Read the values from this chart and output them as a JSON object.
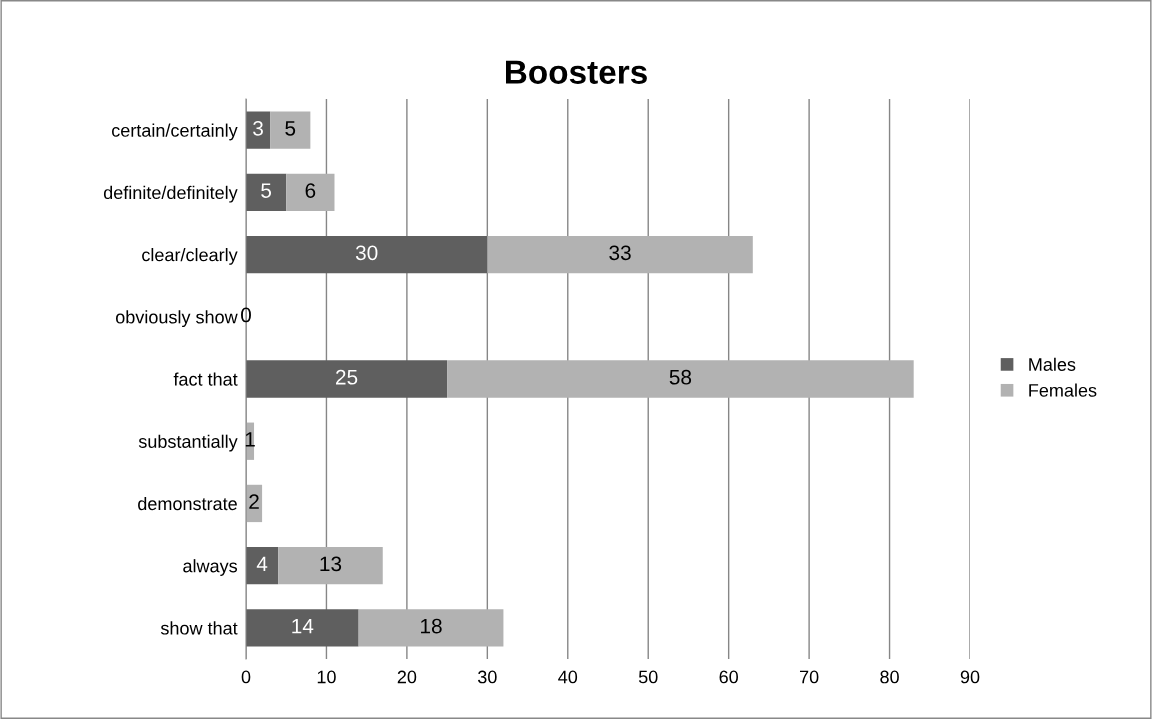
{
  "chart_data": {
    "type": "bar",
    "orientation": "horizontal",
    "stacked": true,
    "title": "Boosters",
    "categories": [
      "certain/certainly",
      "definite/definitely",
      "clear/clearly",
      "obviously show",
      "fact that",
      "substantially",
      "demonstrate",
      "always",
      "show that"
    ],
    "series": [
      {
        "name": "Males",
        "color": "#5f5f5f",
        "values": [
          3,
          5,
          30,
          null,
          25,
          null,
          null,
          4,
          14
        ]
      },
      {
        "name": "Females",
        "color": "#b2b2b2",
        "values": [
          5,
          6,
          33,
          0,
          58,
          1,
          2,
          13,
          18
        ]
      }
    ],
    "xlim": [
      0,
      90
    ],
    "xticks": [
      0,
      10,
      20,
      30,
      40,
      50,
      60,
      70,
      80,
      90
    ],
    "grid": "x",
    "legend": "right",
    "data_labels": true
  }
}
